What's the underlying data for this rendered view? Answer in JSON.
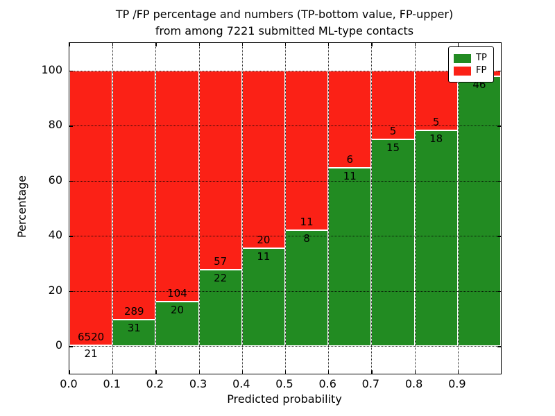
{
  "figure": {
    "title_line1": "TP /FP percentage and numbers (TP-bottom value, FP-upper)",
    "title_line2": "from among 7221 submitted ML-type contacts",
    "total_contacts": "7221"
  },
  "axes": {
    "xlabel": "Predicted probability",
    "ylabel": "Percentage",
    "x_tick_labels": [
      "0.0",
      "0.1",
      "0.2",
      "0.3",
      "0.4",
      "0.5",
      "0.6",
      "0.7",
      "0.8",
      "0.9"
    ],
    "y_tick_labels": [
      "0",
      "20",
      "40",
      "60",
      "80",
      "100"
    ],
    "y_tick_values": [
      0,
      20,
      40,
      60,
      80,
      100
    ],
    "x_tick_values": [
      0.0,
      0.1,
      0.2,
      0.3,
      0.4,
      0.5,
      0.6,
      0.7,
      0.8,
      0.9
    ]
  },
  "colors": {
    "tp": "#228b22",
    "fp": "#fb2116",
    "bar_edge": "#ffffff",
    "grid": "#000000",
    "text": "#000000",
    "background": "#ffffff"
  },
  "legend": {
    "items": [
      {
        "label": "TP",
        "color": "#228b22"
      },
      {
        "label": "FP",
        "color": "#fb2116"
      }
    ]
  },
  "chart_data": {
    "type": "bar",
    "stacked": true,
    "normalized": "percent",
    "title": "TP /FP percentage and numbers (TP-bottom value, FP-upper) from among 7221 submitted ML-type contacts",
    "xlabel": "Predicted probability",
    "ylabel": "Percentage",
    "xlim": [
      0.0,
      1.0
    ],
    "ylim": [
      -10,
      110
    ],
    "grid": true,
    "legend_position": "upper right",
    "bin_width": 0.1,
    "categories": [
      "0.0-0.1",
      "0.1-0.2",
      "0.2-0.3",
      "0.3-0.4",
      "0.4-0.5",
      "0.5-0.6",
      "0.6-0.7",
      "0.7-0.8",
      "0.8-0.9",
      "0.9-1.0"
    ],
    "series": [
      {
        "name": "TP",
        "color": "#228b22",
        "values": [
          21,
          31,
          20,
          22,
          11,
          8,
          11,
          15,
          18,
          46
        ]
      },
      {
        "name": "FP",
        "color": "#fb2116",
        "values": [
          6520,
          289,
          104,
          57,
          20,
          11,
          6,
          5,
          5,
          1
        ]
      }
    ],
    "bins": [
      {
        "range": [
          0.0,
          0.1
        ],
        "tp": 21,
        "fp": 6520,
        "tp_pct": 0.32,
        "fp_label_visible": true
      },
      {
        "range": [
          0.1,
          0.2
        ],
        "tp": 31,
        "fp": 289,
        "tp_pct": 9.69,
        "fp_label_visible": true
      },
      {
        "range": [
          0.2,
          0.3
        ],
        "tp": 20,
        "fp": 104,
        "tp_pct": 16.13,
        "fp_label_visible": true
      },
      {
        "range": [
          0.3,
          0.4
        ],
        "tp": 22,
        "fp": 57,
        "tp_pct": 27.85,
        "fp_label_visible": true
      },
      {
        "range": [
          0.4,
          0.5
        ],
        "tp": 11,
        "fp": 20,
        "tp_pct": 35.48,
        "fp_label_visible": true
      },
      {
        "range": [
          0.5,
          0.6
        ],
        "tp": 8,
        "fp": 11,
        "tp_pct": 42.11,
        "fp_label_visible": true
      },
      {
        "range": [
          0.6,
          0.7
        ],
        "tp": 11,
        "fp": 6,
        "tp_pct": 64.71,
        "fp_label_visible": true
      },
      {
        "range": [
          0.7,
          0.8
        ],
        "tp": 15,
        "fp": 5,
        "tp_pct": 75.0,
        "fp_label_visible": true
      },
      {
        "range": [
          0.8,
          0.9
        ],
        "tp": 18,
        "fp": 5,
        "tp_pct": 78.26,
        "fp_label_visible": true
      },
      {
        "range": [
          0.9,
          1.0
        ],
        "tp": 46,
        "fp": 1,
        "tp_pct": 97.87,
        "fp_label_visible": false
      }
    ]
  }
}
